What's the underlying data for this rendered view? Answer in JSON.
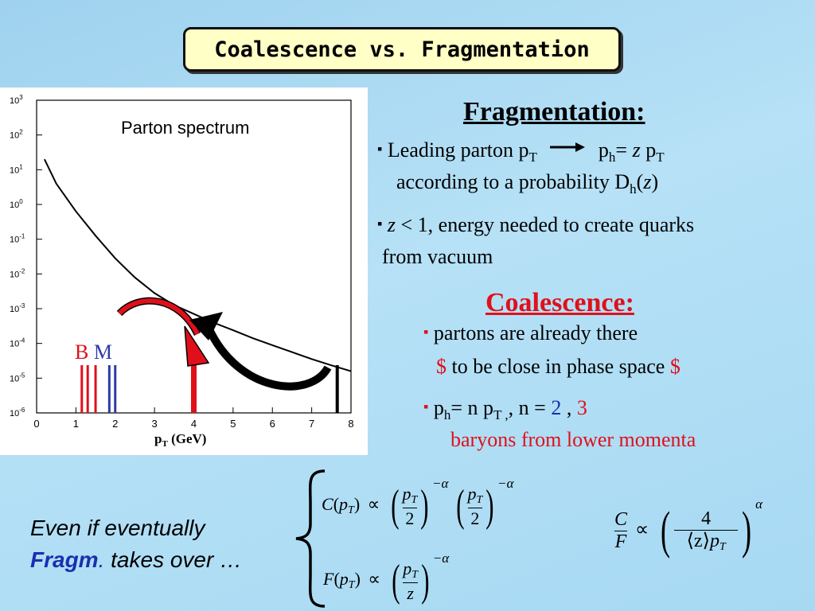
{
  "title": "Coalescence vs. Fragmentation",
  "plot": {
    "inset_label": "Parton spectrum",
    "xlabel_main": "p",
    "xlabel_sub": "T",
    "xlabel_unit": " (GeV)",
    "x_ticks": [
      "0",
      "1",
      "2",
      "3",
      "4",
      "5",
      "6",
      "7",
      "8"
    ],
    "y_ticks": [
      {
        "b": "10",
        "e": "3"
      },
      {
        "b": "10",
        "e": "2"
      },
      {
        "b": "10",
        "e": "1"
      },
      {
        "b": "10",
        "e": "0"
      },
      {
        "b": "10",
        "e": "-1"
      },
      {
        "b": "10",
        "e": "-2"
      },
      {
        "b": "10",
        "e": "-3"
      },
      {
        "b": "10",
        "e": "-4"
      },
      {
        "b": "10",
        "e": "-5"
      },
      {
        "b": "10",
        "e": "-6"
      }
    ],
    "label_B": "B",
    "label_M": "M",
    "curve_points": [
      [
        0.2,
        1.3
      ],
      [
        0.5,
        0.6
      ],
      [
        1,
        -0.2
      ],
      [
        1.5,
        -0.9
      ],
      [
        2,
        -1.55
      ],
      [
        2.5,
        -2.1
      ],
      [
        3,
        -2.55
      ],
      [
        3.5,
        -2.9
      ],
      [
        4,
        -3.15
      ],
      [
        4.5,
        -3.4
      ],
      [
        5,
        -3.62
      ],
      [
        5.5,
        -3.85
      ],
      [
        6,
        -4.05
      ],
      [
        6.5,
        -4.25
      ],
      [
        7,
        -4.45
      ],
      [
        7.5,
        -4.63
      ],
      [
        8,
        -4.8
      ]
    ],
    "colors": {
      "red": "#e0101a",
      "blue": "#2a3aa8",
      "black": "#000000"
    }
  },
  "fragmentation": {
    "title": "Fragmentation:",
    "b1_a": "Leading parton p",
    "b1_a_sub": "T",
    "b1_b": "p",
    "b1_b_sub": "h",
    "b1_c": "= ",
    "b1_z": "z",
    "b1_d": " p",
    "b1_d_sub": "T",
    "b1_line2": "according to a probability D",
    "b1_line2_sub": "h",
    "b1_line2_open": "(",
    "b1_line2_z": "z",
    "b1_line2_close": ")",
    "b2_z": "z",
    "b2_text": " < 1, energy needed to create quarks",
    "b2_line2": "from vacuum"
  },
  "coalescence": {
    "title": "Coalescence:",
    "b1": "partons are already there",
    "b1_line2_dollar1": "$",
    "b1_line2_text": " to be close in phase space ",
    "b1_line2_dollar2": "$",
    "b2_a": "p",
    "b2_a_sub": "h",
    "b2_b": "= n p",
    "b2_b_sub": "T ,",
    "b2_c": ", n = ",
    "b2_two": "2",
    "b2_comma": " , ",
    "b2_three": "3",
    "b2_line2": "baryons from lower momenta"
  },
  "bottom": {
    "line1": "Even if  eventually",
    "fragm": "Fragm",
    "dot": ".",
    "line2_rest": " takes over …"
  },
  "equations": {
    "C_lhs": "C",
    "F_lhs": "F",
    "pT_p": "p",
    "pT_T": "T",
    "prop": "∝",
    "two": "2",
    "z": "z",
    "neg_alpha": "−α",
    "alpha": "α",
    "four": "4",
    "avg_z": "⟨z⟩"
  }
}
